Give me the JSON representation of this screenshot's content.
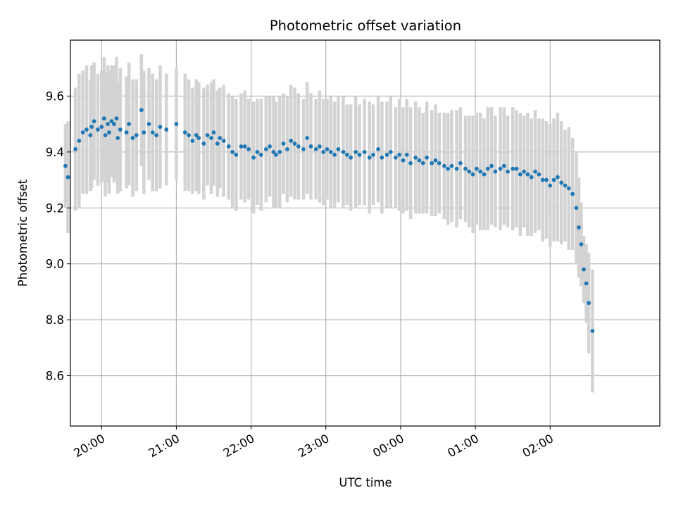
{
  "chart_data": {
    "type": "scatter",
    "title": "Photometric offset variation",
    "xlabel": "UTC time",
    "ylabel": "Photometric offset",
    "x_ticks": [
      "20:00",
      "21:00",
      "22:00",
      "23:00",
      "00:00",
      "01:00",
      "02:00"
    ],
    "y_ticks": [
      "8.6",
      "8.8",
      "9.0",
      "9.2",
      "9.4",
      "9.6"
    ],
    "xlim": [
      "19:35",
      "03:28"
    ],
    "ylim": [
      8.42,
      9.8
    ],
    "grid": true,
    "error_bar_color": "#d3d3d3",
    "point_color": "#1f77b4",
    "series": [
      {
        "x": [
          "19:31",
          "19:33",
          "19:39",
          "19:42",
          "19:45",
          "19:48",
          "19:51",
          "19:52",
          "19:54",
          "19:57",
          "20:00",
          "20:02",
          "20:03",
          "20:05",
          "20:06",
          "20:08",
          "20:10",
          "20:12",
          "20:13",
          "20:15",
          "20:20",
          "20:22",
          "20:25",
          "20:28",
          "20:32",
          "20:34",
          "20:38",
          "20:41",
          "20:44",
          "20:47",
          "20:52",
          "21:00",
          "21:07",
          "21:10",
          "21:13",
          "21:16",
          "21:18",
          "21:22",
          "21:25",
          "21:28",
          "21:30",
          "21:33",
          "21:35",
          "21:38",
          "21:42",
          "21:45",
          "21:48",
          "21:52",
          "21:55",
          "21:58",
          "22:02",
          "22:05",
          "22:08",
          "22:12",
          "22:15",
          "22:18",
          "22:20",
          "22:23",
          "22:26",
          "22:29",
          "22:32",
          "22:35",
          "22:38",
          "22:42",
          "22:45",
          "22:48",
          "22:52",
          "22:55",
          "22:58",
          "23:01",
          "23:04",
          "23:07",
          "23:10",
          "23:14",
          "23:17",
          "23:20",
          "23:24",
          "23:27",
          "23:31",
          "23:35",
          "23:38",
          "23:42",
          "23:45",
          "23:49",
          "23:52",
          "23:56",
          "23:59",
          "00:02",
          "00:05",
          "00:08",
          "00:12",
          "00:15",
          "00:18",
          "00:21",
          "00:25",
          "00:28",
          "00:31",
          "00:35",
          "00:38",
          "00:41",
          "00:45",
          "00:48",
          "00:52",
          "00:55",
          "00:58",
          "01:01",
          "01:04",
          "01:07",
          "01:10",
          "01:13",
          "01:16",
          "01:20",
          "01:23",
          "01:26",
          "01:30",
          "01:33",
          "01:36",
          "01:39",
          "01:42",
          "01:45",
          "01:48",
          "01:51",
          "01:54",
          "01:57",
          "02:00",
          "02:03",
          "02:06",
          "02:09",
          "02:12",
          "02:15",
          "02:18",
          "02:21",
          "02:23",
          "02:25",
          "02:27",
          "02:29",
          "02:31",
          "02:34"
        ],
        "y": [
          9.35,
          9.31,
          9.41,
          9.44,
          9.47,
          9.48,
          9.46,
          9.49,
          9.51,
          9.48,
          9.49,
          9.52,
          9.46,
          9.5,
          9.47,
          9.51,
          9.5,
          9.52,
          9.45,
          9.48,
          9.47,
          9.5,
          9.45,
          9.46,
          9.55,
          9.47,
          9.5,
          9.47,
          9.46,
          9.49,
          9.48,
          9.5,
          9.47,
          9.46,
          9.44,
          9.46,
          9.45,
          9.43,
          9.46,
          9.45,
          9.47,
          9.43,
          9.45,
          9.44,
          9.42,
          9.4,
          9.39,
          9.42,
          9.42,
          9.41,
          9.38,
          9.4,
          9.39,
          9.41,
          9.42,
          9.4,
          9.39,
          9.4,
          9.43,
          9.41,
          9.44,
          9.43,
          9.42,
          9.41,
          9.45,
          9.42,
          9.41,
          9.42,
          9.4,
          9.41,
          9.4,
          9.39,
          9.41,
          9.4,
          9.39,
          9.38,
          9.4,
          9.39,
          9.4,
          9.38,
          9.39,
          9.41,
          9.38,
          9.39,
          9.4,
          9.38,
          9.39,
          9.37,
          9.39,
          9.36,
          9.38,
          9.37,
          9.36,
          9.38,
          9.36,
          9.37,
          9.36,
          9.35,
          9.34,
          9.35,
          9.34,
          9.36,
          9.34,
          9.33,
          9.32,
          9.34,
          9.33,
          9.32,
          9.34,
          9.35,
          9.33,
          9.34,
          9.35,
          9.33,
          9.34,
          9.34,
          9.32,
          9.33,
          9.32,
          9.31,
          9.33,
          9.32,
          9.3,
          9.3,
          9.28,
          9.3,
          9.31,
          9.29,
          9.28,
          9.27,
          9.25,
          9.2,
          9.13,
          9.07,
          8.98,
          8.93,
          8.86,
          8.76
        ],
        "err": [
          0.15,
          0.2,
          0.22,
          0.24,
          0.22,
          0.23,
          0.2,
          0.22,
          0.21,
          0.2,
          0.2,
          0.22,
          0.22,
          0.21,
          0.22,
          0.2,
          0.21,
          0.22,
          0.2,
          0.22,
          0.2,
          0.22,
          0.21,
          0.2,
          0.2,
          0.22,
          0.2,
          0.21,
          0.2,
          0.22,
          0.2,
          0.2,
          0.21,
          0.2,
          0.19,
          0.2,
          0.2,
          0.2,
          0.18,
          0.2,
          0.19,
          0.19,
          0.18,
          0.2,
          0.19,
          0.2,
          0.2,
          0.19,
          0.2,
          0.18,
          0.2,
          0.19,
          0.2,
          0.19,
          0.18,
          0.2,
          0.19,
          0.2,
          0.18,
          0.19,
          0.2,
          0.2,
          0.19,
          0.18,
          0.2,
          0.19,
          0.18,
          0.2,
          0.19,
          0.18,
          0.2,
          0.19,
          0.19,
          0.2,
          0.18,
          0.19,
          0.2,
          0.18,
          0.19,
          0.2,
          0.18,
          0.19,
          0.2,
          0.19,
          0.2,
          0.18,
          0.2,
          0.19,
          0.2,
          0.2,
          0.2,
          0.19,
          0.18,
          0.2,
          0.19,
          0.2,
          0.18,
          0.19,
          0.2,
          0.2,
          0.21,
          0.2,
          0.19,
          0.2,
          0.21,
          0.2,
          0.21,
          0.2,
          0.22,
          0.21,
          0.2,
          0.22,
          0.21,
          0.2,
          0.22,
          0.21,
          0.22,
          0.2,
          0.22,
          0.21,
          0.22,
          0.2,
          0.22,
          0.21,
          0.22,
          0.22,
          0.23,
          0.22,
          0.2,
          0.22,
          0.2,
          0.2,
          0.18,
          0.15,
          0.12,
          0.14,
          0.18,
          0.22
        ]
      }
    ]
  }
}
